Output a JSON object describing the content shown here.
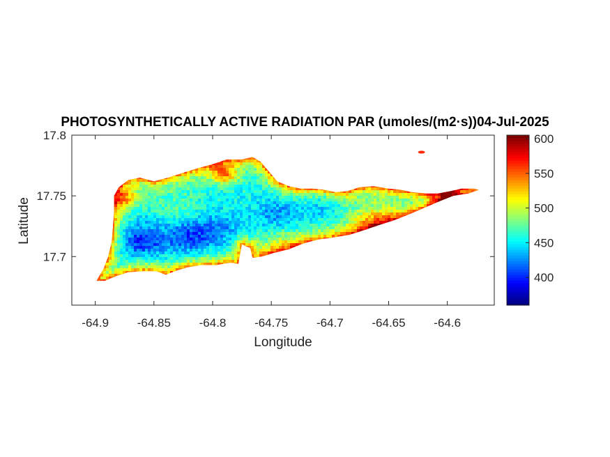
{
  "chart_data": {
    "type": "heatmap",
    "title": "PHOTOSYNTHETICALLY ACTIVE RADIATION PAR (umoles/(m2·s))04-Jul-2025",
    "xlabel": "Longitude",
    "ylabel": "Latitude",
    "xlim": [
      -64.92,
      -64.56
    ],
    "ylim": [
      17.66,
      17.8
    ],
    "xticks": [
      -64.9,
      -64.85,
      -64.8,
      -64.75,
      -64.7,
      -64.65,
      -64.6
    ],
    "xtick_labels": [
      "-64.9",
      "-64.85",
      "-64.8",
      "-64.75",
      "-64.7",
      "-64.65",
      "-64.6"
    ],
    "yticks": [
      17.7,
      17.75,
      17.8
    ],
    "ytick_labels": [
      "17.7",
      "17.75",
      "17.8"
    ],
    "colorbar": {
      "range": [
        360,
        605
      ],
      "ticks": [
        400,
        450,
        500,
        550,
        600
      ],
      "tick_labels": [
        "400",
        "450",
        "500",
        "550",
        "600"
      ],
      "colormap": "jet"
    },
    "grid": false,
    "coastline": [
      [
        -64.899,
        17.68
      ],
      [
        -64.893,
        17.69
      ],
      [
        -64.889,
        17.7
      ],
      [
        -64.886,
        17.712
      ],
      [
        -64.885,
        17.724
      ],
      [
        -64.884,
        17.738
      ],
      [
        -64.884,
        17.75
      ],
      [
        -64.88,
        17.757
      ],
      [
        -64.872,
        17.763
      ],
      [
        -64.862,
        17.765
      ],
      [
        -64.85,
        17.762
      ],
      [
        -64.838,
        17.765
      ],
      [
        -64.825,
        17.769
      ],
      [
        -64.812,
        17.773
      ],
      [
        -64.8,
        17.776
      ],
      [
        -64.788,
        17.78
      ],
      [
        -64.775,
        17.78
      ],
      [
        -64.766,
        17.782
      ],
      [
        -64.759,
        17.778
      ],
      [
        -64.752,
        17.77
      ],
      [
        -64.745,
        17.762
      ],
      [
        -64.735,
        17.758
      ],
      [
        -64.725,
        17.756
      ],
      [
        -64.715,
        17.756
      ],
      [
        -64.705,
        17.755
      ],
      [
        -64.695,
        17.753
      ],
      [
        -64.685,
        17.754
      ],
      [
        -64.675,
        17.757
      ],
      [
        -64.663,
        17.758
      ],
      [
        -64.65,
        17.756
      ],
      [
        -64.64,
        17.755
      ],
      [
        -64.63,
        17.753
      ],
      [
        -64.618,
        17.752
      ],
      [
        -64.608,
        17.752
      ],
      [
        -64.597,
        17.754
      ],
      [
        -64.588,
        17.756
      ],
      [
        -64.578,
        17.756
      ],
      [
        -64.573,
        17.755
      ],
      [
        -64.582,
        17.752
      ],
      [
        -64.595,
        17.75
      ],
      [
        -64.608,
        17.745
      ],
      [
        -64.62,
        17.74
      ],
      [
        -64.632,
        17.735
      ],
      [
        -64.645,
        17.73
      ],
      [
        -64.658,
        17.726
      ],
      [
        -64.67,
        17.722
      ],
      [
        -64.683,
        17.718
      ],
      [
        -64.695,
        17.716
      ],
      [
        -64.71,
        17.714
      ],
      [
        -64.722,
        17.711
      ],
      [
        -64.735,
        17.706
      ],
      [
        -64.748,
        17.703
      ],
      [
        -64.758,
        17.7
      ],
      [
        -64.766,
        17.699
      ],
      [
        -64.768,
        17.707
      ],
      [
        -64.775,
        17.71
      ],
      [
        -64.777,
        17.7
      ],
      [
        -64.778,
        17.694
      ],
      [
        -64.785,
        17.695
      ],
      [
        -64.797,
        17.693
      ],
      [
        -64.81,
        17.693
      ],
      [
        -64.822,
        17.691
      ],
      [
        -64.832,
        17.688
      ],
      [
        -64.84,
        17.685
      ],
      [
        -64.848,
        17.688
      ],
      [
        -64.86,
        17.688
      ],
      [
        -64.872,
        17.687
      ],
      [
        -64.882,
        17.684
      ],
      [
        -64.892,
        17.68
      ]
    ],
    "islets": [
      [
        -64.622,
        17.786
      ]
    ],
    "field": {
      "base": 455,
      "coast_bump": 95,
      "coast_decay_deg": 0.006,
      "lows": [
        {
          "lon": -64.86,
          "lat": 17.713,
          "value": -55,
          "r": 0.02
        },
        {
          "lon": -64.82,
          "lat": 17.716,
          "value": -50,
          "r": 0.02
        },
        {
          "lon": -64.79,
          "lat": 17.722,
          "value": -30,
          "r": 0.02
        },
        {
          "lon": -64.745,
          "lat": 17.735,
          "value": -30,
          "r": 0.02
        },
        {
          "lon": -64.705,
          "lat": 17.742,
          "value": -20,
          "r": 0.018
        }
      ],
      "highs": [
        {
          "lon": -64.875,
          "lat": 17.748,
          "value": 70,
          "r": 0.012
        },
        {
          "lon": -64.79,
          "lat": 17.768,
          "value": 80,
          "r": 0.012
        },
        {
          "lon": -64.66,
          "lat": 17.727,
          "value": 60,
          "r": 0.025
        },
        {
          "lon": -64.6,
          "lat": 17.748,
          "value": 80,
          "r": 0.015
        },
        {
          "lon": -64.74,
          "lat": 17.71,
          "value": 30,
          "r": 0.02
        },
        {
          "lon": -64.83,
          "lat": 17.74,
          "value": 15,
          "r": 0.02
        }
      ]
    }
  }
}
